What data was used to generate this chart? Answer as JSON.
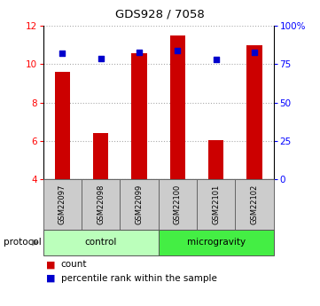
{
  "title": "GDS928 / 7058",
  "samples": [
    "GSM22097",
    "GSM22098",
    "GSM22099",
    "GSM22100",
    "GSM22101",
    "GSM22102"
  ],
  "count_values": [
    9.6,
    6.4,
    10.6,
    11.5,
    6.05,
    11.0
  ],
  "percentile_values": [
    82,
    79,
    83,
    84,
    78,
    83
  ],
  "ylim_left": [
    4,
    12
  ],
  "ylim_right": [
    0,
    100
  ],
  "yticks_left": [
    4,
    6,
    8,
    10,
    12
  ],
  "yticks_right": [
    0,
    25,
    50,
    75,
    100
  ],
  "ytick_labels_right": [
    "0",
    "25",
    "50",
    "75",
    "100%"
  ],
  "bar_color": "#cc0000",
  "dot_color": "#0000cc",
  "groups": [
    {
      "label": "control",
      "indices": [
        0,
        1,
        2
      ],
      "color": "#bbffbb"
    },
    {
      "label": "microgravity",
      "indices": [
        3,
        4,
        5
      ],
      "color": "#44ee44"
    }
  ],
  "protocol_label": "protocol",
  "legend_count_label": "count",
  "legend_percentile_label": "percentile rank within the sample",
  "sample_label_bg": "#cccccc",
  "grid_color": "#aaaaaa",
  "bar_width": 0.4,
  "dot_size": 18
}
